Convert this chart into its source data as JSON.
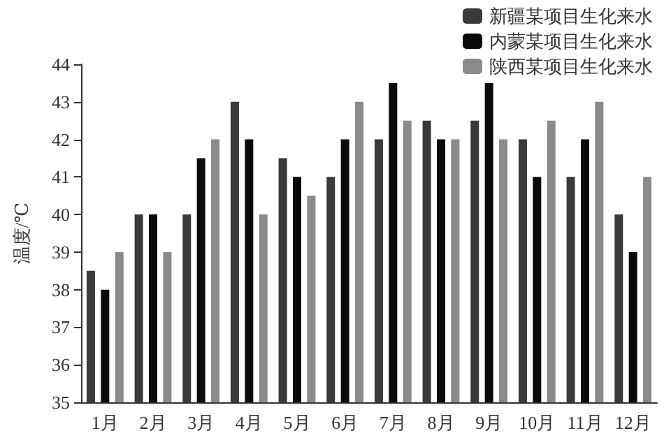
{
  "chart_data": {
    "type": "bar",
    "ylabel": "温度/℃",
    "categories": [
      "1月",
      "2月",
      "3月",
      "4月",
      "5月",
      "6月",
      "7月",
      "8月",
      "9月",
      "10月",
      "11月",
      "12月"
    ],
    "series": [
      {
        "name": "新疆某项目生化来水",
        "color": "#3a3a3a",
        "values": [
          38.5,
          40,
          40,
          43,
          41.5,
          41,
          42,
          42.5,
          42.5,
          42,
          41,
          40
        ]
      },
      {
        "name": "内蒙某项目生化来水",
        "color": "#0a0a0a",
        "values": [
          38,
          40,
          41.5,
          42,
          41,
          42,
          43.5,
          42,
          43.5,
          41,
          42,
          39
        ]
      },
      {
        "name": "陕西某项目生化来水",
        "color": "#8a8a8a",
        "values": [
          39,
          39,
          42,
          40,
          40.5,
          43,
          42.5,
          42,
          42,
          42.5,
          43,
          41
        ]
      }
    ],
    "ylim": [
      35,
      44
    ],
    "yticks": [
      35,
      36,
      37,
      38,
      39,
      40,
      41,
      42,
      43,
      44
    ],
    "grid": false,
    "legend": "top right"
  }
}
